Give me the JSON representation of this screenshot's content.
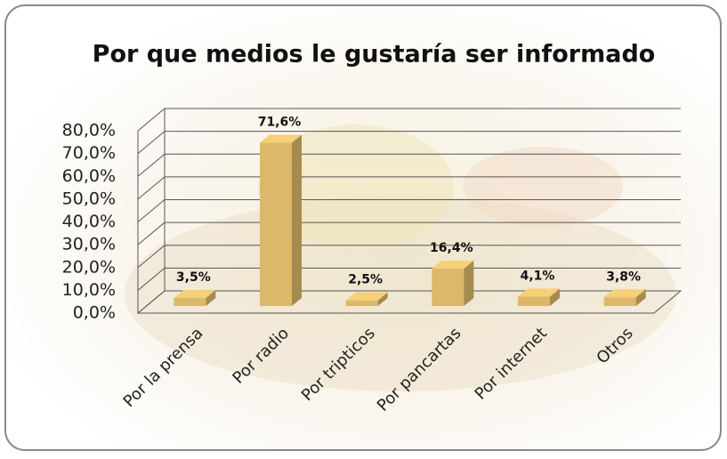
{
  "chart_data": {
    "type": "bar3d",
    "title": "Por que medios le gustaría ser informado",
    "categories": [
      "Por la prensa",
      "Por radio",
      "Por tripticos",
      "Por pancartas",
      "Por internet",
      "Otros"
    ],
    "values": [
      3.5,
      71.6,
      2.5,
      16.4,
      4.1,
      3.8
    ],
    "value_labels": [
      "3,5%",
      "71,6%",
      "2,5%",
      "16,4%",
      "4,1%",
      "3,8%"
    ],
    "color": "#dcb96a",
    "ylim": [
      0,
      80
    ],
    "yticks": [
      {
        "value": 0,
        "label": "0,0%"
      },
      {
        "value": 10,
        "label": "10,0%"
      },
      {
        "value": 20,
        "label": "20,0%"
      },
      {
        "value": 30,
        "label": "30,0%"
      },
      {
        "value": 40,
        "label": "40,0%"
      },
      {
        "value": 50,
        "label": "50,0%"
      },
      {
        "value": 60,
        "label": "60,0%"
      },
      {
        "value": 70,
        "label": "70,0%"
      },
      {
        "value": 80,
        "label": "80,0%"
      }
    ],
    "grid": true
  }
}
